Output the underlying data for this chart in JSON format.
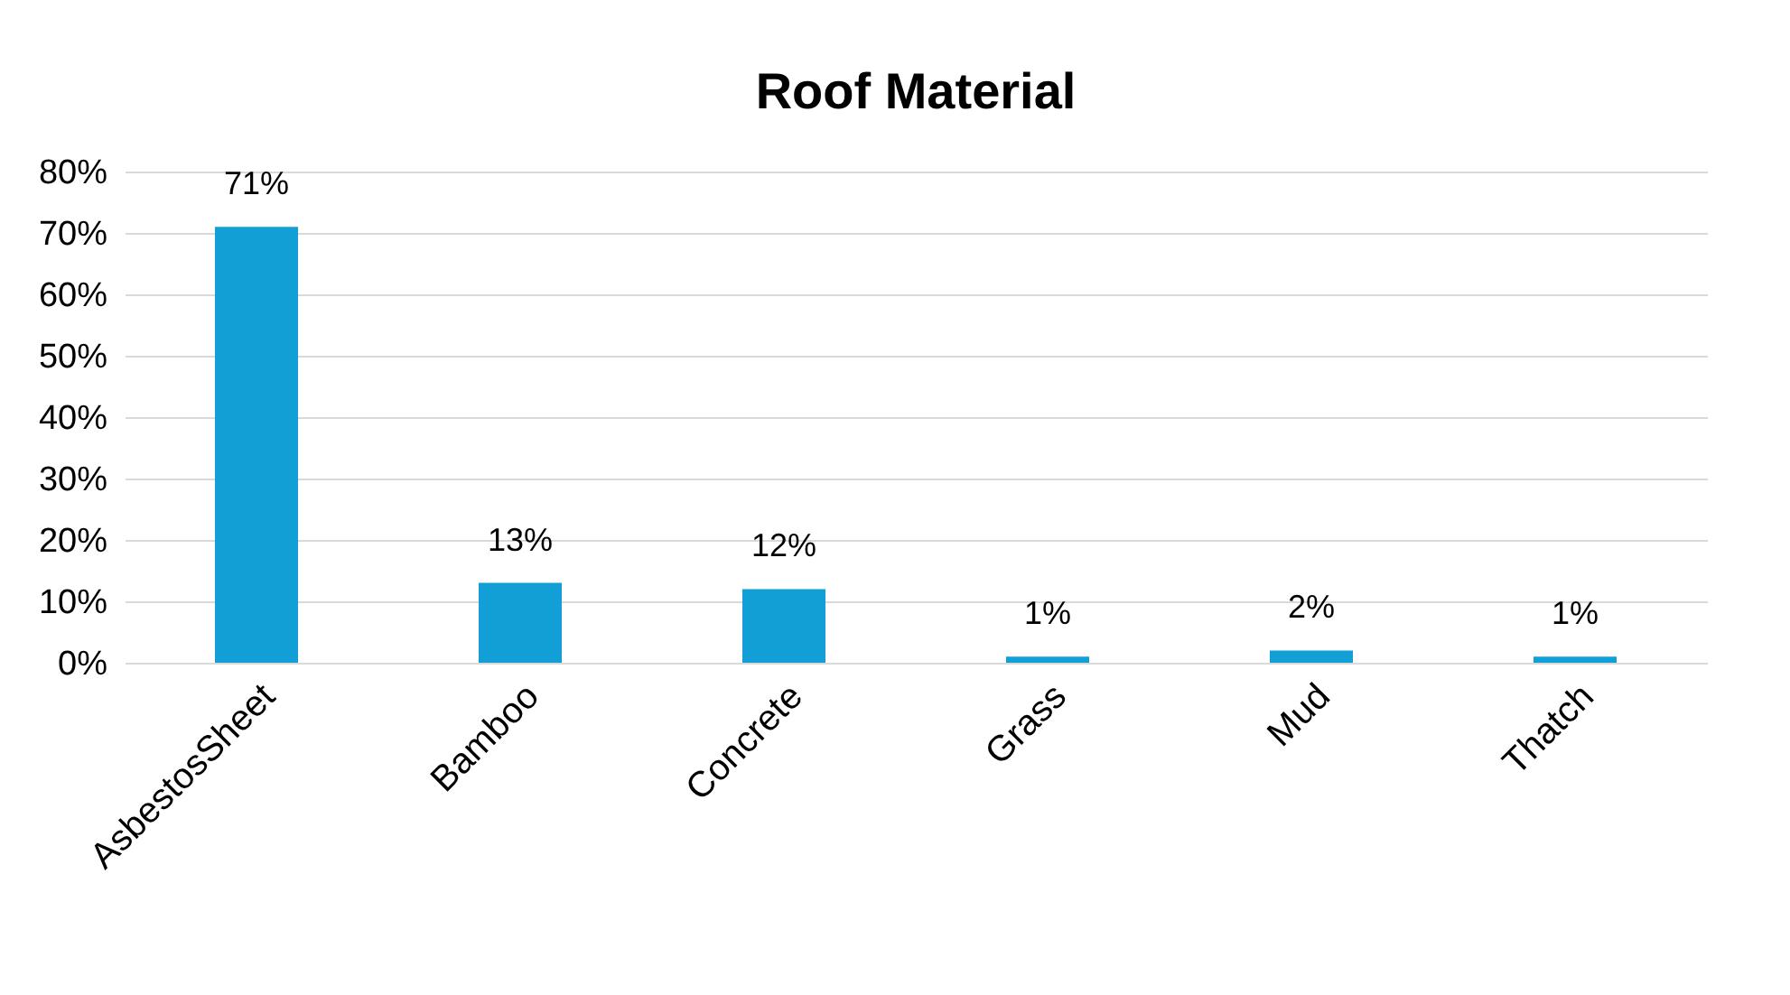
{
  "chart_data": {
    "type": "bar",
    "title": "Roof Material",
    "categories": [
      "AsbestosSheet",
      "Bamboo",
      "Concrete",
      "Grass",
      "Mud",
      "Thatch"
    ],
    "values": [
      71,
      13,
      12,
      1,
      2,
      1
    ],
    "value_labels": [
      "71%",
      "13%",
      "12%",
      "1%",
      "2%",
      "1%"
    ],
    "color": "#129fd6",
    "ylim": [
      0,
      80
    ],
    "yticks": [
      {
        "value": 0,
        "label": "0%"
      },
      {
        "value": 10,
        "label": "10%"
      },
      {
        "value": 20,
        "label": "20%"
      },
      {
        "value": 30,
        "label": "30%"
      },
      {
        "value": 40,
        "label": "40%"
      },
      {
        "value": 50,
        "label": "50%"
      },
      {
        "value": 60,
        "label": "60%"
      },
      {
        "value": 70,
        "label": "70%"
      },
      {
        "value": 80,
        "label": "80%"
      }
    ],
    "grid": "y"
  }
}
